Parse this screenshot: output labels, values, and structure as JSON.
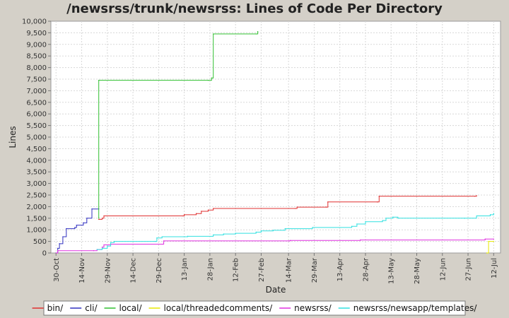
{
  "chart_data": {
    "type": "line",
    "title": "/newsrss/trunk/newsrss: Lines of Code Per Directory",
    "xlabel": "Date",
    "ylabel": "Lines",
    "ylim": [
      0,
      10000
    ],
    "y_ticks": [
      0,
      500,
      1000,
      1500,
      2000,
      2500,
      3000,
      3500,
      4000,
      4500,
      5000,
      5500,
      6000,
      6500,
      7000,
      7500,
      8000,
      8500,
      9000,
      9500,
      10000
    ],
    "y_tick_labels": [
      "0",
      "500",
      "1,000",
      "1,500",
      "2,000",
      "2,500",
      "3,000",
      "3,500",
      "4,000",
      "4,500",
      "5,000",
      "5,500",
      "6,000",
      "6,500",
      "7,000",
      "7,500",
      "8,000",
      "8,500",
      "9,000",
      "9,500",
      "10,000"
    ],
    "x_range": [
      "Oct 27",
      "Jul 16"
    ],
    "x_ticks": [
      {
        "date": "Oct 30",
        "label": "30-Oct"
      },
      {
        "date": "Nov 14",
        "label": "14-Nov"
      },
      {
        "date": "Nov 29",
        "label": "29-Nov"
      },
      {
        "date": "Dec 14",
        "label": "14-Dec"
      },
      {
        "date": "Dec 29",
        "label": "29-Dec"
      },
      {
        "date": "Jan 13",
        "label": "13-Jan"
      },
      {
        "date": "Jan 28",
        "label": "28-Jan"
      },
      {
        "date": "Feb 12",
        "label": "12-Feb"
      },
      {
        "date": "Feb 27",
        "label": "27-Feb"
      },
      {
        "date": "Mar 14",
        "label": "14-Mar"
      },
      {
        "date": "Mar 29",
        "label": "29-Mar"
      },
      {
        "date": "Apr 13",
        "label": "13-Apr"
      },
      {
        "date": "Apr 28",
        "label": "28-Apr"
      },
      {
        "date": "May 13",
        "label": "13-May"
      },
      {
        "date": "May 28",
        "label": "28-May"
      },
      {
        "date": "Jun 12",
        "label": "12-Jun"
      },
      {
        "date": "Jun 27",
        "label": "27-Jun"
      },
      {
        "date": "Jul 12",
        "label": "12-Jul"
      }
    ],
    "grid": true,
    "legend_position": "bottom",
    "series": [
      {
        "name": "bin/",
        "color": "#e03030",
        "step": true,
        "points": [
          {
            "x": "Nov 24",
            "y": 1450
          },
          {
            "x": "Nov 26",
            "y": 1500
          },
          {
            "x": "Nov 27",
            "y": 1600
          },
          {
            "x": "Jan 12",
            "y": 1600
          },
          {
            "x": "Jan 13",
            "y": 1650
          },
          {
            "x": "Jan 20",
            "y": 1700
          },
          {
            "x": "Jan 23",
            "y": 1800
          },
          {
            "x": "Jan 27",
            "y": 1850
          },
          {
            "x": "Jan 30",
            "y": 1920
          },
          {
            "x": "Mar 18",
            "y": 1920
          },
          {
            "x": "Mar 19",
            "y": 1980
          },
          {
            "x": "Apr 5",
            "y": 1980
          },
          {
            "x": "Apr 6",
            "y": 2200
          },
          {
            "x": "May 5",
            "y": 2200
          },
          {
            "x": "May 6",
            "y": 2450
          },
          {
            "x": "Jul 1",
            "y": 2450
          },
          {
            "x": "Jul 2",
            "y": 2470
          }
        ]
      },
      {
        "name": "cli/",
        "color": "#3030c0",
        "step": true,
        "points": [
          {
            "x": "Oct 30",
            "y": 0
          },
          {
            "x": "Oct 31",
            "y": 200
          },
          {
            "x": "Nov 1",
            "y": 400
          },
          {
            "x": "Nov 3",
            "y": 700
          },
          {
            "x": "Nov 5",
            "y": 1050
          },
          {
            "x": "Nov 10",
            "y": 1100
          },
          {
            "x": "Nov 11",
            "y": 1200
          },
          {
            "x": "Nov 15",
            "y": 1300
          },
          {
            "x": "Nov 17",
            "y": 1500
          },
          {
            "x": "Nov 20",
            "y": 1900
          },
          {
            "x": "Nov 24",
            "y": 1900
          }
        ]
      },
      {
        "name": "local/",
        "color": "#30c030",
        "step": true,
        "points": [
          {
            "x": "Nov 24",
            "y": 1500
          },
          {
            "x": "Nov 24",
            "y": 7450
          },
          {
            "x": "Jan 27",
            "y": 7450
          },
          {
            "x": "Jan 29",
            "y": 7550
          },
          {
            "x": "Jan 30",
            "y": 9450
          },
          {
            "x": "Feb 24",
            "y": 9450
          },
          {
            "x": "Feb 25",
            "y": 9550
          }
        ]
      },
      {
        "name": "local/threadedcomments/",
        "color": "#e8e800",
        "step": true,
        "points": [
          {
            "x": "Jul 8",
            "y": 0
          },
          {
            "x": "Jul 9",
            "y": 500
          },
          {
            "x": "Jul 12",
            "y": 500
          }
        ]
      },
      {
        "name": "newsrss/",
        "color": "#e030e0",
        "step": true,
        "points": [
          {
            "x": "Oct 30",
            "y": 0
          },
          {
            "x": "Oct 31",
            "y": 100
          },
          {
            "x": "Nov 21",
            "y": 100
          },
          {
            "x": "Nov 23",
            "y": 150
          },
          {
            "x": "Nov 26",
            "y": 250
          },
          {
            "x": "Nov 27",
            "y": 350
          },
          {
            "x": "Dec 1",
            "y": 380
          },
          {
            "x": "Dec 31",
            "y": 380
          },
          {
            "x": "Jan 1",
            "y": 520
          },
          {
            "x": "Mar 14",
            "y": 520
          },
          {
            "x": "Mar 15",
            "y": 540
          },
          {
            "x": "Apr 25",
            "y": 560
          },
          {
            "x": "Jul 7",
            "y": 600
          },
          {
            "x": "Jul 12",
            "y": 600
          }
        ]
      },
      {
        "name": "newsrss/newsapp/templates/",
        "color": "#30e0e0",
        "step": true,
        "points": [
          {
            "x": "Nov 23",
            "y": 150
          },
          {
            "x": "Nov 26",
            "y": 200
          },
          {
            "x": "Nov 29",
            "y": 300
          },
          {
            "x": "Dec 1",
            "y": 450
          },
          {
            "x": "Dec 3",
            "y": 500
          },
          {
            "x": "Dec 27",
            "y": 500
          },
          {
            "x": "Dec 28",
            "y": 650
          },
          {
            "x": "Dec 31",
            "y": 700
          },
          {
            "x": "Jan 13",
            "y": 700
          },
          {
            "x": "Jan 15",
            "y": 720
          },
          {
            "x": "Jan 30",
            "y": 780
          },
          {
            "x": "Feb 5",
            "y": 820
          },
          {
            "x": "Feb 12",
            "y": 850
          },
          {
            "x": "Feb 24",
            "y": 900
          },
          {
            "x": "Feb 27",
            "y": 950
          },
          {
            "x": "Mar 5",
            "y": 980
          },
          {
            "x": "Mar 12",
            "y": 1050
          },
          {
            "x": "Mar 28",
            "y": 1100
          },
          {
            "x": "Apr 20",
            "y": 1150
          },
          {
            "x": "Apr 23",
            "y": 1250
          },
          {
            "x": "Apr 28",
            "y": 1350
          },
          {
            "x": "May 8",
            "y": 1400
          },
          {
            "x": "May 10",
            "y": 1500
          },
          {
            "x": "May 14",
            "y": 1550
          },
          {
            "x": "May 17",
            "y": 1500
          },
          {
            "x": "Jun 25",
            "y": 1500
          },
          {
            "x": "Jul 2",
            "y": 1600
          },
          {
            "x": "Jul 10",
            "y": 1650
          },
          {
            "x": "Jul 12",
            "y": 1700
          }
        ]
      }
    ]
  }
}
